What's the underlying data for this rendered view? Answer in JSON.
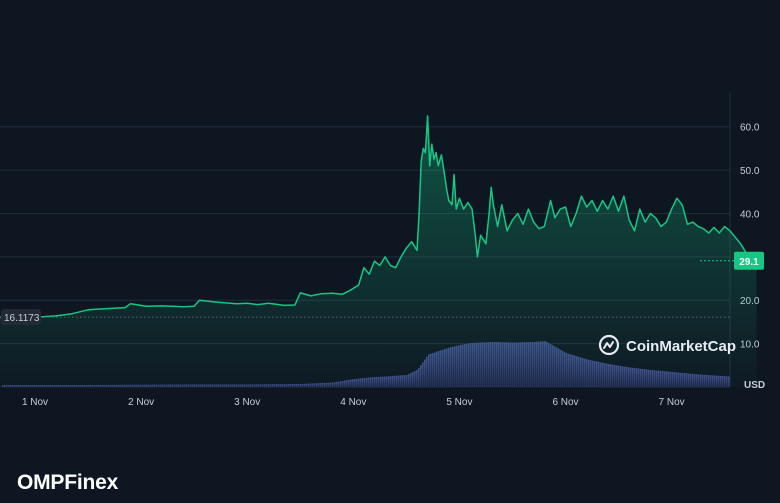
{
  "chart_data": {
    "type": "area",
    "y_unit": "USD",
    "y_ticks": [
      10.0,
      20.0,
      30.0,
      40.0,
      50.0,
      60.0
    ],
    "y_tick_labels": [
      "10.0",
      "20.0",
      "30.0",
      "40.0",
      "50.0",
      "60.0"
    ],
    "y_range": [
      0,
      68
    ],
    "x_ticks": [
      "1 Nov",
      "2 Nov",
      "3 Nov",
      "4 Nov",
      "5 Nov",
      "6 Nov",
      "7 Nov"
    ],
    "x_range_days": [
      0,
      6.8
    ],
    "start_price_label": "16.1173",
    "start_price": 16.1173,
    "current_price_label": "29.1",
    "current_price": 29.1,
    "watermark": "CoinMarketCap",
    "grid": true,
    "series": [
      {
        "values": [
          [
            0,
            16.1
          ],
          [
            0.2,
            16.4
          ],
          [
            0.35,
            16.9
          ],
          [
            0.5,
            17.8
          ],
          [
            0.7,
            18.1
          ],
          [
            0.85,
            18.3
          ],
          [
            0.9,
            19.2
          ],
          [
            1.05,
            18.6
          ],
          [
            1.2,
            18.7
          ],
          [
            1.4,
            18.5
          ],
          [
            1.5,
            18.6
          ],
          [
            1.55,
            20.0
          ],
          [
            1.7,
            19.6
          ],
          [
            1.9,
            19.2
          ],
          [
            2.0,
            19.3
          ],
          [
            2.1,
            19.0
          ],
          [
            2.2,
            19.3
          ],
          [
            2.35,
            18.8
          ],
          [
            2.45,
            18.9
          ],
          [
            2.5,
            21.7
          ],
          [
            2.6,
            21.0
          ],
          [
            2.7,
            21.5
          ],
          [
            2.8,
            21.6
          ],
          [
            2.9,
            21.4
          ],
          [
            2.97,
            22.3
          ],
          [
            3.05,
            23.5
          ],
          [
            3.1,
            27.5
          ],
          [
            3.15,
            26.0
          ],
          [
            3.2,
            29.0
          ],
          [
            3.25,
            28.0
          ],
          [
            3.3,
            30.0
          ],
          [
            3.35,
            28.0
          ],
          [
            3.4,
            27.5
          ],
          [
            3.45,
            30.0
          ],
          [
            3.5,
            32.0
          ],
          [
            3.55,
            33.5
          ],
          [
            3.6,
            31.5
          ],
          [
            3.62,
            40.0
          ],
          [
            3.64,
            52.0
          ],
          [
            3.66,
            55.0
          ],
          [
            3.68,
            54.0
          ],
          [
            3.7,
            62.5
          ],
          [
            3.72,
            51.0
          ],
          [
            3.74,
            56.0
          ],
          [
            3.76,
            52.5
          ],
          [
            3.78,
            54.0
          ],
          [
            3.8,
            51.0
          ],
          [
            3.83,
            53.5
          ],
          [
            3.86,
            49.0
          ],
          [
            3.88,
            45.5
          ],
          [
            3.9,
            43.0
          ],
          [
            3.93,
            42.0
          ],
          [
            3.95,
            49.0
          ],
          [
            3.97,
            41.0
          ],
          [
            4.0,
            43.5
          ],
          [
            4.04,
            41.0
          ],
          [
            4.08,
            42.5
          ],
          [
            4.12,
            41.0
          ],
          [
            4.15,
            35.0
          ],
          [
            4.17,
            30.0
          ],
          [
            4.2,
            35.0
          ],
          [
            4.25,
            33.0
          ],
          [
            4.28,
            40.0
          ],
          [
            4.3,
            46.0
          ],
          [
            4.32,
            42.0
          ],
          [
            4.36,
            37.0
          ],
          [
            4.4,
            42.0
          ],
          [
            4.45,
            36.0
          ],
          [
            4.5,
            38.5
          ],
          [
            4.55,
            40.0
          ],
          [
            4.6,
            37.5
          ],
          [
            4.65,
            41.0
          ],
          [
            4.7,
            38.0
          ],
          [
            4.75,
            36.5
          ],
          [
            4.8,
            37.0
          ],
          [
            4.86,
            43.0
          ],
          [
            4.9,
            39.0
          ],
          [
            4.95,
            41.0
          ],
          [
            5.0,
            41.5
          ],
          [
            5.05,
            37.0
          ],
          [
            5.1,
            40.0
          ],
          [
            5.15,
            44.0
          ],
          [
            5.2,
            41.5
          ],
          [
            5.25,
            43.0
          ],
          [
            5.3,
            40.5
          ],
          [
            5.35,
            43.0
          ],
          [
            5.4,
            41.0
          ],
          [
            5.45,
            44.0
          ],
          [
            5.5,
            40.5
          ],
          [
            5.55,
            44.0
          ],
          [
            5.6,
            38.5
          ],
          [
            5.65,
            36.0
          ],
          [
            5.7,
            41.0
          ],
          [
            5.75,
            38.0
          ],
          [
            5.8,
            40.0
          ],
          [
            5.85,
            39.0
          ],
          [
            5.9,
            37.0
          ],
          [
            5.95,
            38.0
          ],
          [
            6.0,
            41.0
          ],
          [
            6.05,
            43.5
          ],
          [
            6.1,
            42.0
          ],
          [
            6.15,
            37.5
          ],
          [
            6.2,
            38.0
          ],
          [
            6.25,
            37.0
          ],
          [
            6.3,
            36.5
          ],
          [
            6.35,
            35.5
          ],
          [
            6.4,
            36.8
          ],
          [
            6.45,
            35.5
          ],
          [
            6.5,
            37.0
          ],
          [
            6.55,
            36.0
          ],
          [
            6.6,
            34.5
          ],
          [
            6.65,
            33.0
          ],
          [
            6.7,
            31.0
          ],
          [
            6.75,
            29.5
          ],
          [
            6.8,
            29.1
          ]
        ]
      }
    ],
    "volume_values": [
      [
        0,
        0.4
      ],
      [
        0.5,
        0.4
      ],
      [
        1.0,
        0.45
      ],
      [
        1.5,
        0.5
      ],
      [
        2.0,
        0.5
      ],
      [
        2.5,
        0.6
      ],
      [
        2.8,
        0.9
      ],
      [
        3.0,
        1.6
      ],
      [
        3.2,
        2.0
      ],
      [
        3.3,
        2.1
      ],
      [
        3.5,
        2.4
      ],
      [
        3.6,
        3.5
      ],
      [
        3.7,
        6.5
      ],
      [
        3.8,
        7.2
      ],
      [
        3.9,
        7.9
      ],
      [
        4.0,
        8.4
      ],
      [
        4.1,
        8.8
      ],
      [
        4.3,
        9.0
      ],
      [
        4.5,
        8.9
      ],
      [
        4.7,
        9.0
      ],
      [
        4.8,
        9.2
      ],
      [
        4.9,
        8.0
      ],
      [
        5.0,
        6.8
      ],
      [
        5.2,
        5.5
      ],
      [
        5.4,
        4.6
      ],
      [
        5.6,
        3.9
      ],
      [
        5.8,
        3.4
      ],
      [
        6.0,
        3.0
      ],
      [
        6.2,
        2.6
      ],
      [
        6.4,
        2.3
      ],
      [
        6.6,
        2.0
      ],
      [
        6.8,
        1.8
      ]
    ]
  },
  "brand": {
    "name_prefix": "OMPF",
    "name_accent": "i",
    "name_suffix": "nex"
  }
}
